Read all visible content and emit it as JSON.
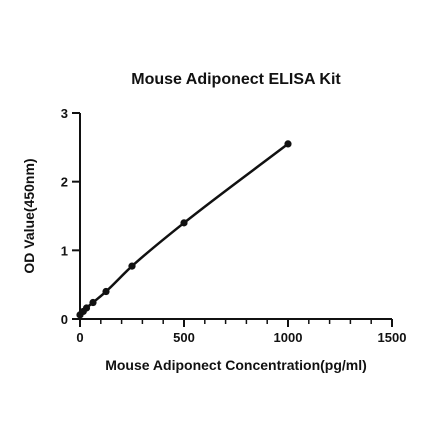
{
  "chart_data": {
    "type": "scatter",
    "title": "Mouse Adiponect ELISA Kit",
    "xlabel": "Mouse Adiponect Concentration(pg/ml)",
    "ylabel": "OD Value(450nm)",
    "xlim": [
      0,
      1500
    ],
    "ylim": [
      0,
      3
    ],
    "x_ticks": [
      0,
      500,
      1000,
      1500
    ],
    "x_minor_step": 100,
    "y_ticks": [
      0,
      1,
      2,
      3
    ],
    "grid": false,
    "fit_curve": true,
    "series": [
      {
        "x": [
          0,
          15.6,
          31.25,
          62.5,
          125,
          250,
          500,
          1000
        ],
        "y": [
          0.06,
          0.11,
          0.16,
          0.24,
          0.4,
          0.77,
          1.4,
          2.55
        ]
      }
    ]
  }
}
